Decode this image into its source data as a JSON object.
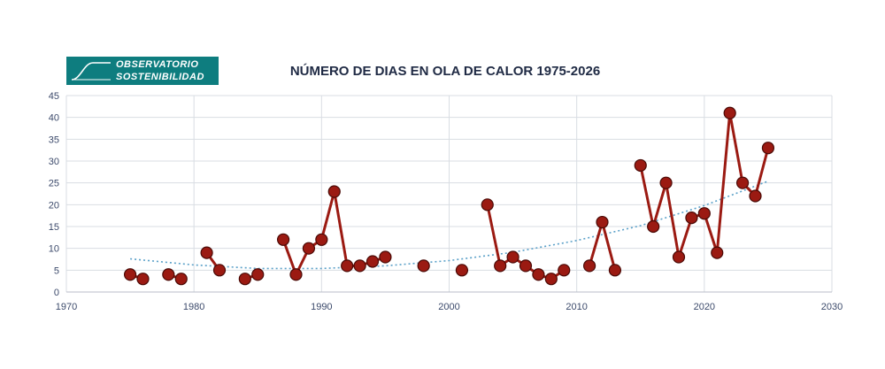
{
  "logo": {
    "line1": "OBSERVATORIO",
    "line2": "SOSTENIBILIDAD",
    "icon": "wave-curve-icon"
  },
  "colors": {
    "series": "#9b1a12",
    "series_stroke": "#4a0a06",
    "trend": "#5aa0c8",
    "grid": "#d9dde3",
    "logo_bg": "#0e7d7f"
  },
  "chart_data": {
    "type": "scatter",
    "title": "NÚMERO DE DIAS EN OLA DE CALOR 1975-2026",
    "xlim": [
      1970,
      2030
    ],
    "ylim": [
      0,
      45
    ],
    "x_ticks": [
      1970,
      1980,
      1990,
      2000,
      2010,
      2020,
      2030
    ],
    "y_ticks": [
      0,
      5,
      10,
      15,
      20,
      25,
      30,
      35,
      40,
      45
    ],
    "grid": true,
    "series": [
      {
        "points": [
          [
            1975,
            4
          ],
          [
            1976,
            3
          ],
          [
            1978,
            4
          ],
          [
            1979,
            3
          ],
          [
            1981,
            9
          ],
          [
            1982,
            5
          ],
          [
            1984,
            3
          ],
          [
            1985,
            4
          ],
          [
            1987,
            12
          ],
          [
            1988,
            4
          ],
          [
            1989,
            10
          ],
          [
            1990,
            12
          ],
          [
            1991,
            23
          ],
          [
            1992,
            6
          ],
          [
            1993,
            6
          ],
          [
            1994,
            7
          ],
          [
            1995,
            8
          ],
          [
            1998,
            6
          ],
          [
            2001,
            5
          ],
          [
            2003,
            20
          ],
          [
            2004,
            6
          ],
          [
            2005,
            8
          ],
          [
            2006,
            6
          ],
          [
            2007,
            4
          ],
          [
            2008,
            3
          ],
          [
            2009,
            5
          ],
          [
            2011,
            6
          ],
          [
            2012,
            16
          ],
          [
            2013,
            5
          ],
          [
            2015,
            29
          ],
          [
            2016,
            15
          ],
          [
            2017,
            25
          ],
          [
            2018,
            8
          ],
          [
            2019,
            17
          ],
          [
            2020,
            18
          ],
          [
            2021,
            9
          ],
          [
            2022,
            41
          ],
          [
            2023,
            25
          ],
          [
            2024,
            22
          ],
          [
            2025,
            33
          ]
        ],
        "connect_consecutive_years": true
      }
    ],
    "trendline": {
      "type": "polynomial",
      "style": "dotted",
      "points": [
        [
          1975,
          7.6
        ],
        [
          1980,
          6.2
        ],
        [
          1985,
          5.4
        ],
        [
          1990,
          5.4
        ],
        [
          1995,
          6.0
        ],
        [
          2000,
          7.2
        ],
        [
          2005,
          9.1
        ],
        [
          2010,
          11.8
        ],
        [
          2015,
          15.2
        ],
        [
          2020,
          19.8
        ],
        [
          2025,
          25.4
        ]
      ]
    }
  }
}
